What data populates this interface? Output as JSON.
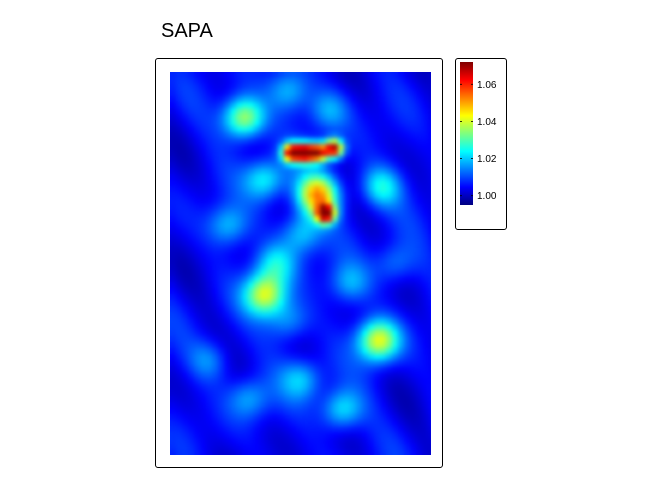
{
  "chart_data": {
    "type": "heatmap",
    "title": "SAPA",
    "grid": false,
    "legend": {
      "placement": "right",
      "ticks": [
        "1.00",
        "1.02",
        "1.04",
        "1.06"
      ],
      "tick_values": [
        1.0,
        1.02,
        1.04,
        1.06
      ],
      "range": [
        0.995,
        1.072
      ]
    },
    "colormap": [
      "#00007F",
      "#0000FF",
      "#007FFF",
      "#00FFFF",
      "#7FFF7F",
      "#FFFF00",
      "#FF7F00",
      "#FF0000",
      "#7F0000"
    ],
    "value_range": [
      0.995,
      1.072
    ],
    "background_value": 1.004,
    "hotspots": [
      {
        "x": 0.51,
        "y": 0.21,
        "value": 1.07
      },
      {
        "x": 0.62,
        "y": 0.2,
        "value": 1.072
      },
      {
        "x": 0.46,
        "y": 0.21,
        "value": 1.068
      },
      {
        "x": 0.56,
        "y": 0.21,
        "value": 1.065
      },
      {
        "x": 0.59,
        "y": 0.37,
        "value": 1.068
      },
      {
        "x": 0.56,
        "y": 0.32,
        "value": 1.05
      },
      {
        "x": 0.36,
        "y": 0.58,
        "value": 1.04
      },
      {
        "x": 0.28,
        "y": 0.12,
        "value": 1.04
      },
      {
        "x": 0.79,
        "y": 0.7,
        "value": 1.042
      },
      {
        "x": 0.36,
        "y": 0.28,
        "value": 1.025
      },
      {
        "x": 0.8,
        "y": 0.3,
        "value": 1.025
      },
      {
        "x": 0.5,
        "y": 0.42,
        "value": 1.022
      },
      {
        "x": 0.4,
        "y": 0.5,
        "value": 1.022
      },
      {
        "x": 0.22,
        "y": 0.4,
        "value": 1.02
      },
      {
        "x": 0.5,
        "y": 0.8,
        "value": 1.02
      },
      {
        "x": 0.65,
        "y": 0.88,
        "value": 1.025
      },
      {
        "x": 0.3,
        "y": 0.85,
        "value": 1.018
      },
      {
        "x": 0.15,
        "y": 0.75,
        "value": 1.016
      },
      {
        "x": 0.68,
        "y": 0.55,
        "value": 1.018
      },
      {
        "x": 0.45,
        "y": 0.65,
        "value": 1.018
      },
      {
        "x": 0.85,
        "y": 0.5,
        "value": 1.016
      },
      {
        "x": 0.45,
        "y": 0.05,
        "value": 1.02
      },
      {
        "x": 0.6,
        "y": 0.1,
        "value": 1.018
      }
    ]
  }
}
